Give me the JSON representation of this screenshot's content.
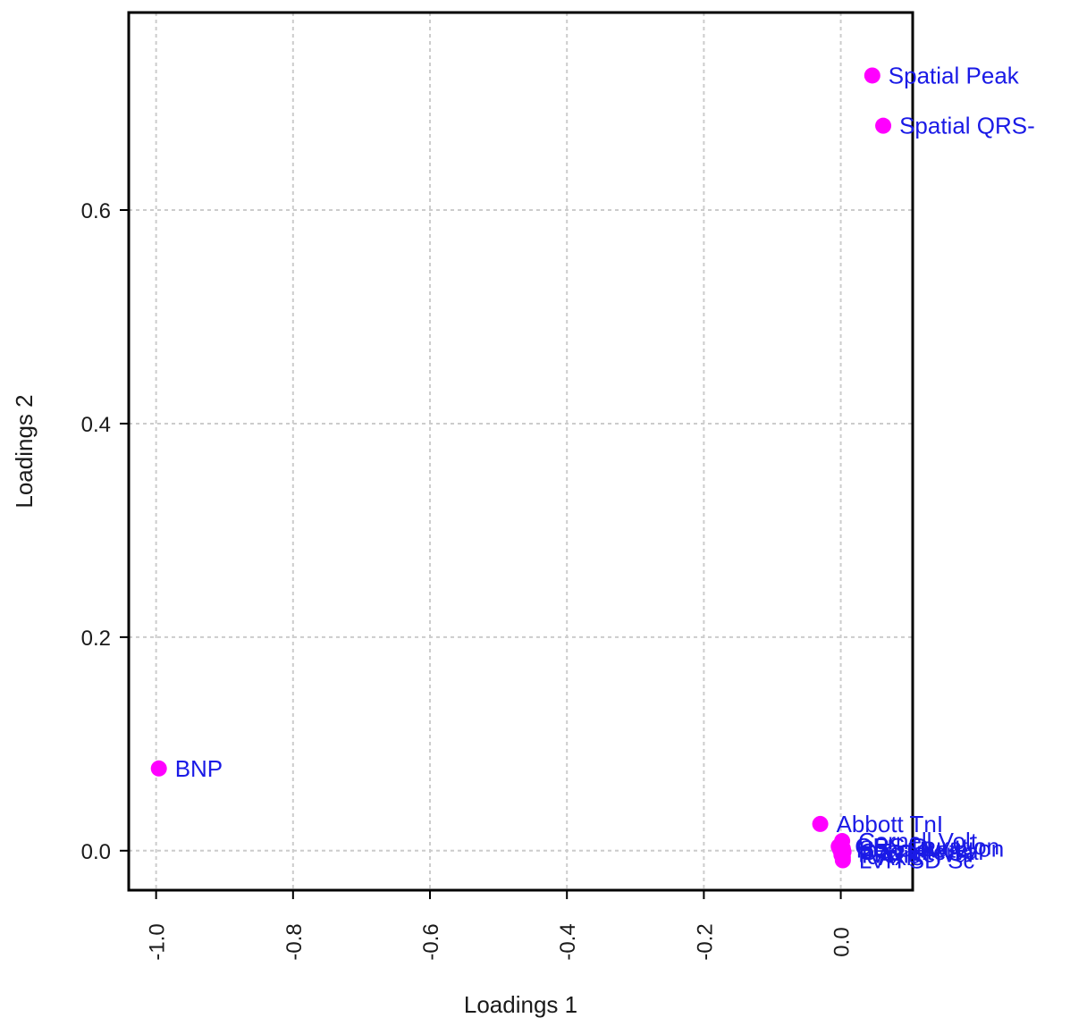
{
  "chart_data": {
    "type": "scatter",
    "xlabel": "Loadings 1",
    "ylabel": "Loadings 2",
    "xlim": [
      -1.04,
      0.105
    ],
    "ylim": [
      -0.037,
      0.785
    ],
    "xticks": [
      -1.0,
      -0.8,
      -0.6,
      -0.4,
      -0.2,
      0.0
    ],
    "xtick_labels": [
      "-1.0",
      "-0.8",
      "-0.6",
      "-0.4",
      "-0.2",
      "0.0"
    ],
    "yticks": [
      0.0,
      0.2,
      0.4,
      0.6
    ],
    "ytick_labels": [
      "0.0",
      "0.2",
      "0.4",
      "0.6"
    ],
    "grid": true,
    "point_color": "#ff00ff",
    "label_color": "#1a1ae6",
    "points": [
      {
        "x": 0.046,
        "y": 0.726,
        "label": "Spatial Peak"
      },
      {
        "x": 0.062,
        "y": 0.679,
        "label": "Spatial QRS-"
      },
      {
        "x": -0.996,
        "y": 0.077,
        "label": "BNP"
      },
      {
        "x": -0.03,
        "y": 0.025,
        "label": "Abbott TnI"
      },
      {
        "x": 0.002,
        "y": 0.009,
        "label": "Cornell Volt"
      },
      {
        "x": -0.003,
        "y": 0.004,
        "label": "QRS Duration"
      },
      {
        "x": 0.003,
        "y": 0.002,
        "label": "Sokolow-Lyon"
      },
      {
        "x": -0.001,
        "y": 0.001,
        "label": "Heart Rate"
      },
      {
        "x": 0.004,
        "y": -0.001,
        "label": "QTc Interval"
      },
      {
        "x": 0.002,
        "y": -0.003,
        "label": "PR Interval"
      },
      {
        "x": 0.001,
        "y": -0.004,
        "label": "T Axis"
      },
      {
        "x": 0.003,
        "y": -0.006,
        "label": "P Axis"
      },
      {
        "x": 0.003,
        "y": -0.009,
        "label": "LVH SD Sc"
      }
    ]
  }
}
